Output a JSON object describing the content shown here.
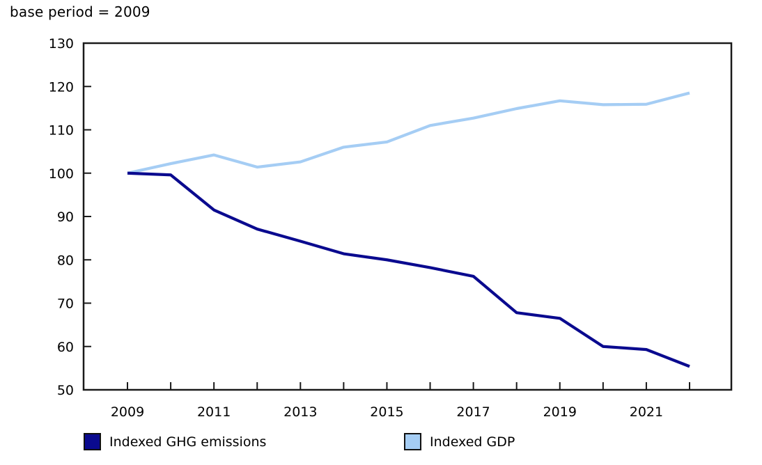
{
  "title": "base period = 2009",
  "colors": {
    "axis": "#1a1a1a",
    "ghg_navy": "#0a0a8f",
    "gdp_light_blue": "#a5cdf4",
    "background": "#ffffff"
  },
  "legend": [
    {
      "id": "ghg",
      "label": "Indexed GHG emissions",
      "color": "#0a0a8f"
    },
    {
      "id": "gdp",
      "label": "Indexed GDP",
      "color": "#a5cdf4"
    }
  ],
  "chart_data": {
    "type": "line",
    "title": "base period = 2009",
    "x": [
      2009,
      2010,
      2011,
      2012,
      2013,
      2014,
      2015,
      2016,
      2017,
      2018,
      2019,
      2020,
      2021,
      2022
    ],
    "series": [
      {
        "id": "ghg",
        "name": "Indexed GHG emissions",
        "color": "#0a0a8f",
        "values": [
          100.0,
          99.6,
          91.5,
          87.1,
          84.3,
          81.4,
          80.0,
          78.2,
          76.2,
          67.8,
          66.5,
          60.0,
          59.3,
          55.4
        ]
      },
      {
        "id": "gdp",
        "name": "Indexed GDP",
        "color": "#a5cdf4",
        "values": [
          100.0,
          102.2,
          104.2,
          101.4,
          102.6,
          106.0,
          107.2,
          111.0,
          112.7,
          114.9,
          116.7,
          115.8,
          115.9,
          118.5
        ]
      }
    ],
    "xlabel": "",
    "ylabel": "",
    "ylim": [
      50,
      130
    ],
    "yticks": [
      50,
      60,
      70,
      80,
      90,
      100,
      110,
      120,
      130
    ],
    "xtick_labels_shown": [
      "2009",
      "2011",
      "2013",
      "2015",
      "2017",
      "2019",
      "2021"
    ],
    "grid": false,
    "legend_position": "bottom"
  }
}
